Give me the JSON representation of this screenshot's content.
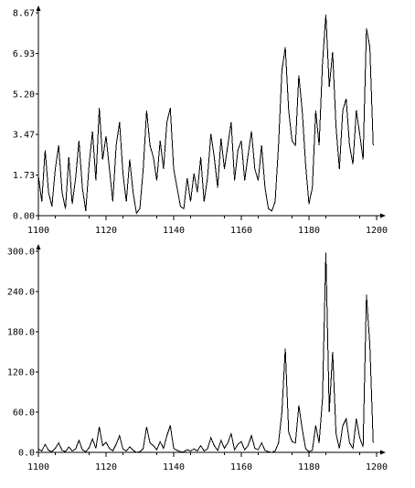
{
  "chart_data": [
    {
      "type": "line",
      "xlim": [
        1100,
        1200
      ],
      "ylim": [
        0,
        8.67
      ],
      "xticks": [
        1100,
        1120,
        1140,
        1160,
        1180,
        1200
      ],
      "yticks": [
        0.0,
        1.73,
        3.47,
        5.2,
        6.93,
        8.67
      ],
      "xtick_labels": [
        "1100",
        "1120",
        "1140",
        "1160",
        "1180",
        "1200"
      ],
      "ytick_labels": [
        "0.00",
        "1.73",
        "3.47",
        "5.20",
        "6.93",
        "8.67"
      ],
      "grid": false,
      "series": [
        {
          "x": [
            1100,
            1101,
            1102,
            1103,
            1104,
            1105,
            1106,
            1107,
            1108,
            1109,
            1110,
            1111,
            1112,
            1113,
            1114,
            1115,
            1116,
            1117,
            1118,
            1119,
            1120,
            1121,
            1122,
            1123,
            1124,
            1125,
            1126,
            1127,
            1128,
            1129,
            1130,
            1131,
            1132,
            1133,
            1134,
            1135,
            1136,
            1137,
            1138,
            1139,
            1140,
            1141,
            1142,
            1143,
            1144,
            1145,
            1146,
            1147,
            1148,
            1149,
            1150,
            1151,
            1152,
            1153,
            1154,
            1155,
            1156,
            1157,
            1158,
            1159,
            1160,
            1161,
            1162,
            1163,
            1164,
            1165,
            1166,
            1167,
            1168,
            1169,
            1170,
            1171,
            1172,
            1173,
            1174,
            1175,
            1176,
            1177,
            1178,
            1179,
            1180,
            1181,
            1182,
            1183,
            1184,
            1185,
            1186,
            1187,
            1188,
            1189,
            1190,
            1191,
            1192,
            1193,
            1194,
            1195,
            1196,
            1197,
            1198,
            1199
          ],
          "y": [
            1.7,
            0.6,
            2.8,
            1.0,
            0.4,
            2.0,
            3.0,
            1.0,
            0.3,
            2.5,
            0.5,
            1.6,
            3.2,
            1.2,
            0.2,
            2.2,
            3.6,
            1.5,
            4.6,
            2.4,
            3.4,
            2.0,
            0.6,
            3.0,
            4.0,
            1.8,
            0.6,
            2.4,
            1.0,
            0.1,
            0.3,
            2.0,
            4.5,
            3.0,
            2.5,
            1.5,
            3.2,
            2.0,
            4.0,
            4.6,
            2.0,
            1.2,
            0.4,
            0.3,
            1.6,
            0.6,
            1.8,
            1.0,
            2.5,
            0.6,
            1.6,
            3.5,
            2.5,
            1.2,
            3.3,
            2.0,
            3.0,
            4.0,
            1.5,
            2.8,
            3.2,
            1.5,
            2.6,
            3.6,
            2.0,
            1.5,
            3.0,
            1.2,
            0.3,
            0.2,
            0.6,
            3.0,
            6.2,
            7.2,
            4.5,
            3.2,
            3.0,
            6.0,
            4.5,
            2.2,
            0.5,
            1.2,
            4.5,
            3.0,
            6.5,
            8.6,
            5.5,
            7.0,
            3.8,
            2.0,
            4.5,
            5.0,
            3.0,
            2.2,
            4.5,
            3.5,
            2.4,
            8.0,
            7.2,
            3.0
          ],
          "color": "#000000"
        }
      ]
    },
    {
      "type": "line",
      "xlim": [
        1100,
        1200
      ],
      "ylim": [
        0,
        300
      ],
      "xticks": [
        1100,
        1120,
        1140,
        1160,
        1180,
        1200
      ],
      "yticks": [
        0,
        60,
        120,
        180,
        240,
        300
      ],
      "xtick_labels": [
        "1100",
        "1120",
        "1140",
        "1160",
        "1180",
        "1200"
      ],
      "ytick_labels": [
        "0.0",
        "60.0",
        "120.0",
        "180.0",
        "240.0",
        "300.0"
      ],
      "grid": false,
      "series": [
        {
          "x": [
            1100,
            1101,
            1102,
            1103,
            1104,
            1105,
            1106,
            1107,
            1108,
            1109,
            1110,
            1111,
            1112,
            1113,
            1114,
            1115,
            1116,
            1117,
            1118,
            1119,
            1120,
            1121,
            1122,
            1123,
            1124,
            1125,
            1126,
            1127,
            1128,
            1129,
            1130,
            1131,
            1132,
            1133,
            1134,
            1135,
            1136,
            1137,
            1138,
            1139,
            1140,
            1141,
            1142,
            1143,
            1144,
            1145,
            1146,
            1147,
            1148,
            1149,
            1150,
            1151,
            1152,
            1153,
            1154,
            1155,
            1156,
            1157,
            1158,
            1159,
            1160,
            1161,
            1162,
            1163,
            1164,
            1165,
            1166,
            1167,
            1168,
            1169,
            1170,
            1171,
            1172,
            1173,
            1174,
            1175,
            1176,
            1177,
            1178,
            1179,
            1180,
            1181,
            1182,
            1183,
            1184,
            1185,
            1186,
            1187,
            1188,
            1189,
            1190,
            1191,
            1192,
            1193,
            1194,
            1195,
            1196,
            1197,
            1198,
            1199
          ],
          "y": [
            5,
            2,
            12,
            3,
            1,
            6,
            14,
            3,
            1,
            8,
            2,
            5,
            18,
            4,
            1,
            7,
            20,
            6,
            38,
            10,
            15,
            6,
            2,
            12,
            25,
            5,
            2,
            8,
            3,
            0,
            1,
            6,
            38,
            14,
            10,
            4,
            16,
            6,
            25,
            40,
            6,
            3,
            1,
            1,
            4,
            2,
            5,
            2,
            10,
            2,
            5,
            22,
            10,
            3,
            18,
            6,
            14,
            28,
            4,
            12,
            16,
            4,
            10,
            25,
            6,
            4,
            14,
            3,
            1,
            0,
            2,
            14,
            60,
            155,
            30,
            16,
            14,
            70,
            35,
            6,
            1,
            3,
            40,
            14,
            80,
            298,
            60,
            150,
            28,
            6,
            40,
            50,
            14,
            6,
            50,
            22,
            8,
            235,
            160,
            14
          ],
          "color": "#000000"
        }
      ]
    }
  ]
}
